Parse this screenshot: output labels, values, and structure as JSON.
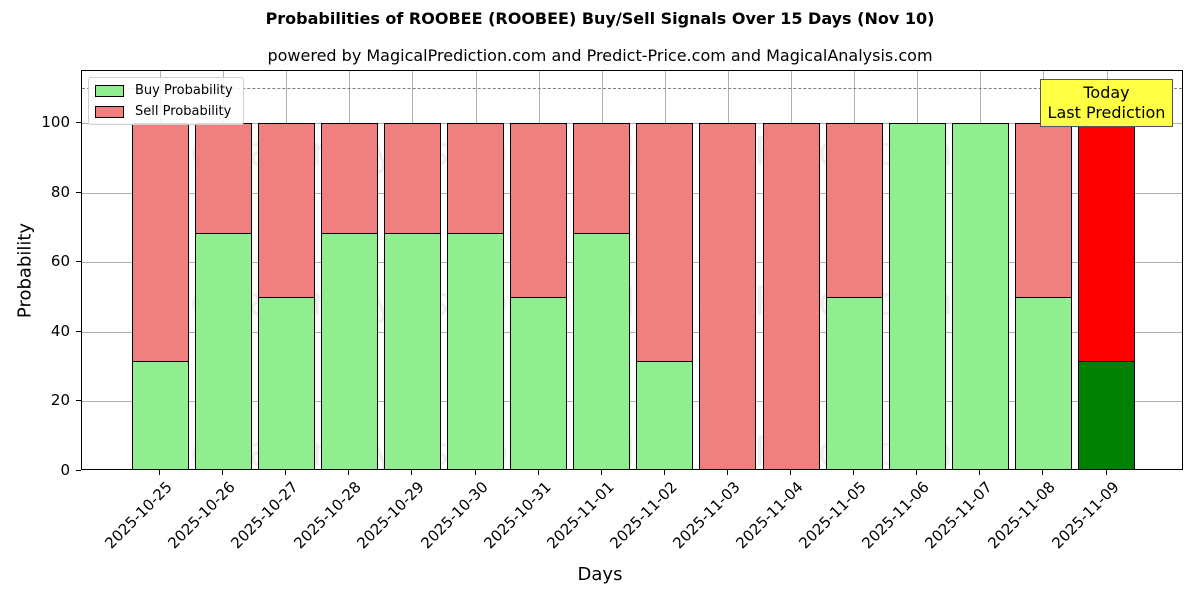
{
  "chart_data": {
    "type": "bar",
    "stacked": true,
    "title": "Probabilities of ROOBEE (ROOBEE) Buy/Sell Signals Over 15 Days (Nov 10)",
    "subtitle": "powered by MagicalPrediction.com and Predict-Price.com and MagicalAnalysis.com",
    "xlabel": "Days",
    "ylabel": "Probability",
    "ylim": [
      0,
      115
    ],
    "yticks": [
      0,
      20,
      40,
      60,
      80,
      100
    ],
    "grid": true,
    "legend_position": "upper left",
    "reference_line": {
      "y": 110,
      "style": "dashed",
      "color": "#808080"
    },
    "categories": [
      "2025-10-25",
      "2025-10-26",
      "2025-10-27",
      "2025-10-28",
      "2025-10-29",
      "2025-10-30",
      "2025-10-31",
      "2025-11-01",
      "2025-11-02",
      "2025-11-03",
      "2025-11-04",
      "2025-11-05",
      "2025-11-06",
      "2025-11-07",
      "2025-11-08",
      "2025-11-09"
    ],
    "series": [
      {
        "name": "Buy Probability",
        "color": "#90ee90",
        "values": [
          31.5,
          68.5,
          50,
          68.5,
          68.5,
          68.5,
          50,
          68.5,
          31.5,
          0,
          0,
          50,
          100,
          100,
          50,
          31.5
        ]
      },
      {
        "name": "Sell Probability",
        "color": "#f08080",
        "values": [
          68.5,
          31.5,
          50,
          31.5,
          31.5,
          31.5,
          50,
          31.5,
          68.5,
          100,
          100,
          50,
          0,
          0,
          50,
          68.5
        ]
      }
    ],
    "highlight": {
      "index": 15,
      "buy_color": "#008000",
      "sell_color": "#ff0000"
    },
    "annotation": "Today\nLast Prediction"
  },
  "title": "Probabilities of ROOBEE (ROOBEE) Buy/Sell Signals Over 15 Days (Nov 10)",
  "subtitle": "powered by MagicalPrediction.com and Predict-Price.com and MagicalAnalysis.com",
  "xlabel": "Days",
  "ylabel": "Probability",
  "legend": {
    "buy": "Buy Probability",
    "sell": "Sell Probability"
  },
  "annotation": {
    "line1": "Today",
    "line2": "Last Prediction"
  },
  "watermarks": [
    "MagicalAnalysis.com",
    "MagicalPrediction.com"
  ]
}
